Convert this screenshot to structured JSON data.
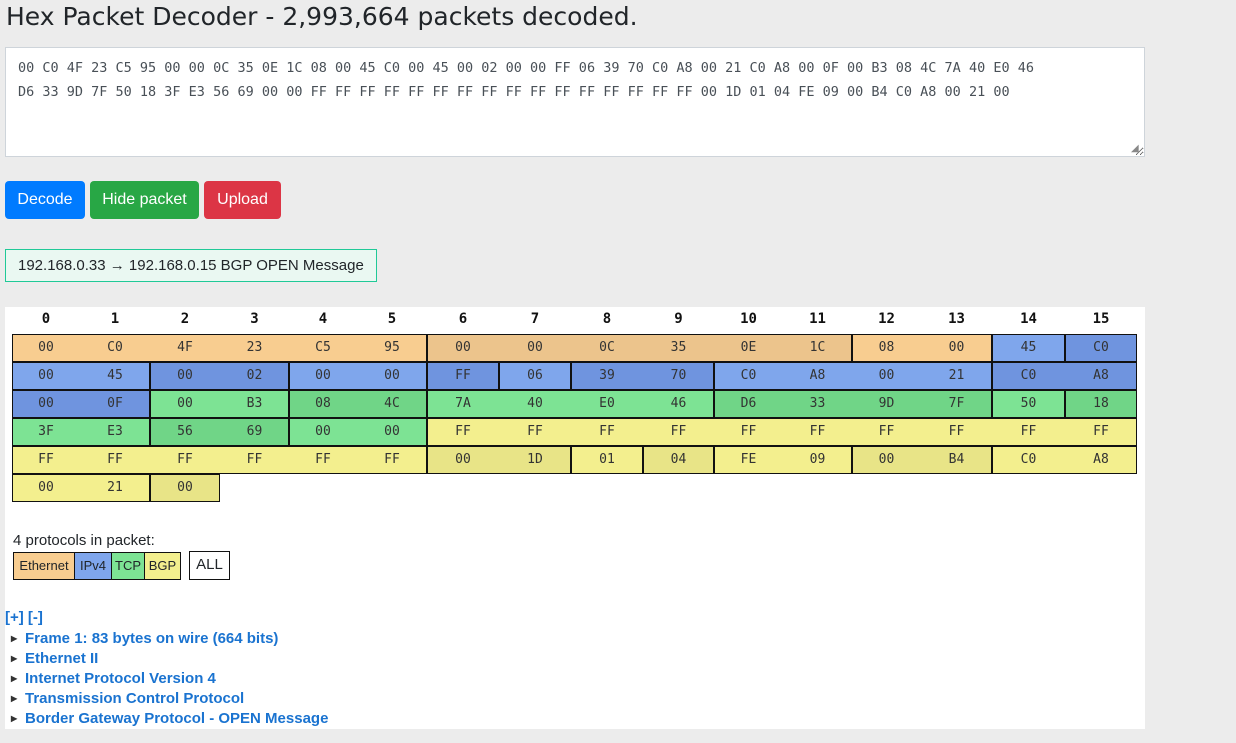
{
  "app": {
    "title": "Hex Packet Decoder - 2,993,664 packets decoded."
  },
  "hex_input": {
    "value": "00 C0 4F 23 C5 95 00 00 0C 35 0E 1C 08 00 45 C0 00 45 00 02 00 00 FF 06 39 70 C0 A8 00 21 C0 A8 00 0F 00 B3 08 4C 7A 40 E0 46\nD6 33 9D 7F 50 18 3F E3 56 69 00 00 FF FF FF FF FF FF FF FF FF FF FF FF FF FF FF FF 00 1D 01 04 FE 09 00 B4 C0 A8 00 21 00"
  },
  "buttons": {
    "decode": "Decode",
    "hide_packet": "Hide packet",
    "upload": "Upload"
  },
  "summary": "192.168.0.33 → 192.168.0.15 BGP OPEN Message",
  "grid": {
    "columns": [
      "0",
      "1",
      "2",
      "3",
      "4",
      "5",
      "6",
      "7",
      "8",
      "9",
      "10",
      "11",
      "12",
      "13",
      "14",
      "15"
    ],
    "bytes": [
      "00",
      "C0",
      "4F",
      "23",
      "C5",
      "95",
      "00",
      "00",
      "0C",
      "35",
      "0E",
      "1C",
      "08",
      "00",
      "45",
      "C0",
      "00",
      "45",
      "00",
      "02",
      "00",
      "00",
      "FF",
      "06",
      "39",
      "70",
      "C0",
      "A8",
      "00",
      "21",
      "C0",
      "A8",
      "00",
      "0F",
      "00",
      "B3",
      "08",
      "4C",
      "7A",
      "40",
      "E0",
      "46",
      "D6",
      "33",
      "9D",
      "7F",
      "50",
      "18",
      "3F",
      "E3",
      "56",
      "69",
      "00",
      "00",
      "FF",
      "FF",
      "FF",
      "FF",
      "FF",
      "FF",
      "FF",
      "FF",
      "FF",
      "FF",
      "FF",
      "FF",
      "FF",
      "FF",
      "FF",
      "FF",
      "00",
      "1D",
      "01",
      "04",
      "FE",
      "09",
      "00",
      "B4",
      "C0",
      "A8",
      "00",
      "21",
      "00"
    ],
    "colors": {
      "ethernet": "#f8cd90",
      "ipv4": "#7fa6ec",
      "tcp": "#7de394",
      "bgp": "#f3ef8e"
    }
  },
  "protocols": {
    "label": "4 protocols in packet:",
    "items": [
      "Ethernet",
      "IPv4",
      "TCP",
      "BGP"
    ],
    "all_label": "ALL"
  },
  "tree": {
    "expand_all": "[+]",
    "collapse_all": "[-]",
    "items": [
      "Frame 1: 83 bytes on wire (664 bits)",
      "Ethernet II",
      "Internet Protocol Version 4",
      "Transmission Control Protocol",
      "Border Gateway Protocol - OPEN Message"
    ]
  }
}
